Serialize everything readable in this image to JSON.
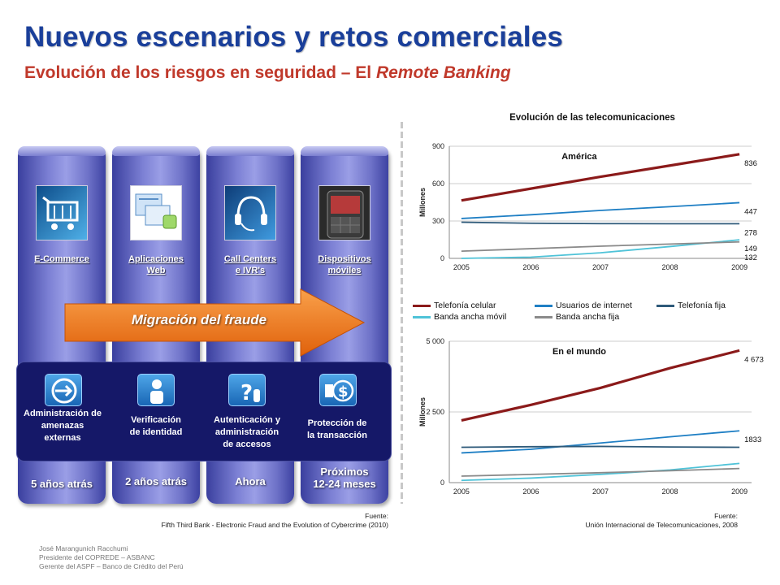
{
  "header": {
    "title": "Nuevos escenarios y retos comerciales",
    "subtitle_prefix": "Evolución de los riesgos en seguridad – El ",
    "subtitle_italic": "Remote Banking"
  },
  "columns": [
    {
      "label_1": "E-Commerce",
      "label_2": "",
      "time_1": "5 años atrás",
      "time_2": "",
      "icon": "shopping-cart-icon"
    },
    {
      "label_1": "Aplicaciones",
      "label_2": "Web",
      "time_1": "2 años atrás",
      "time_2": "",
      "icon": "web-app-icon"
    },
    {
      "label_1": "Call Centers",
      "label_2": "e IVR's",
      "time_1": "Ahora",
      "time_2": "",
      "icon": "headset-icon"
    },
    {
      "label_1": "Dispositivos",
      "label_2": "móviles",
      "time_1": "Próximos",
      "time_2": "12-24 meses",
      "icon": "mobile-phone-icon"
    }
  ],
  "arrow": {
    "label": "Migración del fraude",
    "color": "#f07a1a"
  },
  "panel": {
    "items": [
      {
        "line_1": "Administración  de",
        "line_2": "amenazas",
        "line_3": "externas",
        "icon": "external-threat-icon"
      },
      {
        "line_1": "Verificación",
        "line_2": "de identidad",
        "line_3": "",
        "icon": "identity-icon"
      },
      {
        "line_1": "Autenticación  y",
        "line_2": "administración",
        "line_3": "de accesos",
        "icon": "auth-question-icon"
      },
      {
        "line_1": "Protección de",
        "line_2": "la transacción",
        "line_3": "",
        "icon": "transaction-money-icon"
      }
    ]
  },
  "sources": {
    "left_label": "Fuente:",
    "left_text": "Fifth Third Bank - Electronic Fraud and the Evolution of Cybercrime (2010)",
    "right_label": "Fuente:",
    "right_text": "Unión Internacional de Telecomunicaciones, 2008"
  },
  "author": {
    "line_1": "José Marangunich Racchumi",
    "line_2": "Presidente del COPREDE – ASBANC",
    "line_3": "Gerente del ASPF – Banco de Crédito del Perú"
  },
  "chart_heading": "Evolución de las telecomunicaciones",
  "legend": [
    {
      "name": "Telefonía celular",
      "color": "#8b1a1a"
    },
    {
      "name": "Usuarios de internet",
      "color": "#1f7fc4"
    },
    {
      "name": "Telefonía fija",
      "color": "#2e5a7a"
    },
    {
      "name": "Banda ancha móvil",
      "color": "#4fc3d8"
    },
    {
      "name": "Banda ancha fija",
      "color": "#8a8a8a"
    }
  ],
  "chart_data": [
    {
      "type": "line",
      "title": "América",
      "ylabel": "Millones",
      "x": [
        2005,
        2006,
        2007,
        2008,
        2009
      ],
      "ylim": [
        0,
        900
      ],
      "yticks": [
        "0",
        "300",
        "600",
        "900"
      ],
      "series": [
        {
          "name": "Telefonía celular",
          "values": [
            465,
            560,
            655,
            745,
            836
          ],
          "end_label": "836"
        },
        {
          "name": "Usuarios de internet",
          "values": [
            320,
            350,
            385,
            415,
            447
          ],
          "end_label": "447"
        },
        {
          "name": "Telefonía fija",
          "values": [
            290,
            282,
            279,
            278,
            278
          ],
          "end_label": "278"
        },
        {
          "name": "Banda ancha móvil",
          "values": [
            0,
            10,
            45,
            95,
            149
          ],
          "end_label": "149"
        },
        {
          "name": "Banda ancha fija",
          "values": [
            58,
            78,
            98,
            115,
            132
          ],
          "end_label": "132"
        }
      ]
    },
    {
      "type": "line",
      "title": "En el mundo",
      "ylabel": "Millones",
      "x": [
        2005,
        2006,
        2007,
        2008,
        2009
      ],
      "ylim": [
        0,
        5000
      ],
      "yticks": [
        "0",
        "2 500",
        "5 000"
      ],
      "series": [
        {
          "name": "Telefonía celular",
          "values": [
            2200,
            2750,
            3350,
            4050,
            4673
          ],
          "end_label": "4 673"
        },
        {
          "name": "Usuarios de internet",
          "values": [
            1050,
            1180,
            1400,
            1620,
            1833
          ],
          "end_label": "1833"
        },
        {
          "name": "Telefonía fija",
          "values": [
            1250,
            1270,
            1280,
            1260,
            1250
          ],
          "end_label": ""
        },
        {
          "name": "Banda ancha móvil",
          "values": [
            80,
            160,
            290,
            450,
            680
          ],
          "end_label": ""
        },
        {
          "name": "Banda ancha fija",
          "values": [
            230,
            290,
            350,
            420,
            500
          ],
          "end_label": ""
        }
      ]
    }
  ]
}
